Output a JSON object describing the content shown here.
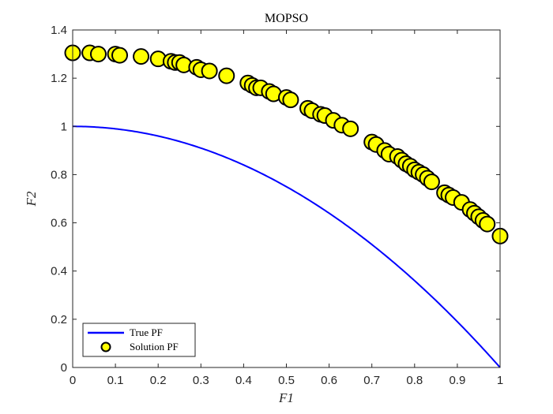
{
  "chart_data": {
    "type": "scatter",
    "title": "MOPSO",
    "xlabel": "F1",
    "ylabel": "F2",
    "xlim": [
      0,
      1
    ],
    "ylim": [
      0,
      1.4
    ],
    "xticks": [
      "0",
      "0.1",
      "0.2",
      "0.3",
      "0.4",
      "0.5",
      "0.6",
      "0.7",
      "0.8",
      "0.9",
      "1"
    ],
    "yticks": [
      "0",
      "0.2",
      "0.4",
      "0.6",
      "0.8",
      "1",
      "1.2",
      "1.4"
    ],
    "grid": false,
    "legend_position": "bottom-left",
    "series": [
      {
        "name": "True PF",
        "kind": "line",
        "color": "#0000ff",
        "function": "F2 = 1 - F1^2"
      },
      {
        "name": "Solution PF",
        "kind": "scatter",
        "color": "#ffff00",
        "edge_color": "#000000",
        "x": [
          0.0,
          0.04,
          0.06,
          0.1,
          0.11,
          0.16,
          0.2,
          0.23,
          0.24,
          0.25,
          0.26,
          0.29,
          0.3,
          0.32,
          0.36,
          0.41,
          0.42,
          0.43,
          0.44,
          0.46,
          0.47,
          0.5,
          0.51,
          0.55,
          0.56,
          0.58,
          0.59,
          0.61,
          0.63,
          0.65,
          0.7,
          0.71,
          0.73,
          0.74,
          0.76,
          0.77,
          0.78,
          0.79,
          0.8,
          0.81,
          0.82,
          0.83,
          0.84,
          0.87,
          0.88,
          0.89,
          0.91,
          0.93,
          0.94,
          0.95,
          0.96,
          0.97,
          1.0
        ],
        "y": [
          1.305,
          1.305,
          1.3,
          1.3,
          1.295,
          1.29,
          1.28,
          1.27,
          1.265,
          1.265,
          1.255,
          1.245,
          1.235,
          1.23,
          1.21,
          1.18,
          1.17,
          1.16,
          1.16,
          1.145,
          1.135,
          1.12,
          1.11,
          1.075,
          1.065,
          1.05,
          1.045,
          1.025,
          1.005,
          0.99,
          0.935,
          0.925,
          0.9,
          0.885,
          0.875,
          0.86,
          0.845,
          0.835,
          0.82,
          0.81,
          0.8,
          0.785,
          0.77,
          0.725,
          0.715,
          0.705,
          0.685,
          0.655,
          0.64,
          0.625,
          0.61,
          0.595,
          0.545
        ]
      }
    ]
  }
}
